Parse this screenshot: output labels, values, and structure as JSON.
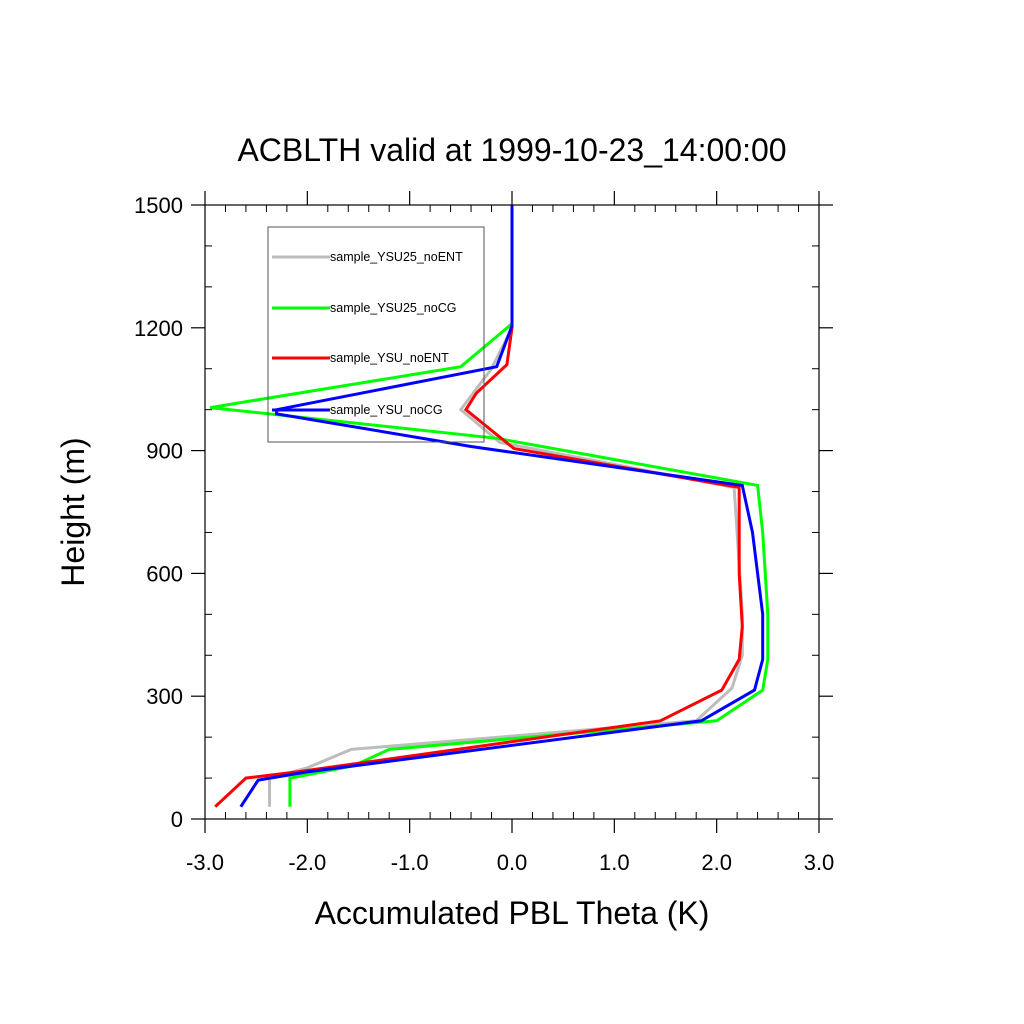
{
  "chart_data": {
    "type": "line",
    "title": "ACBLTH valid at 1999-10-23_14:00:00",
    "xlabel": "Accumulated PBL Theta (K)",
    "ylabel": "Height (m)",
    "xlim": [
      -3.0,
      3.0
    ],
    "ylim": [
      0,
      1500
    ],
    "xticks": [
      -3.0,
      -2.0,
      -1.0,
      0.0,
      1.0,
      2.0,
      3.0
    ],
    "xtick_labels": [
      "-3.0",
      "-2.0",
      "-1.0",
      "0.0",
      "1.0",
      "2.0",
      "3.0"
    ],
    "yticks": [
      0,
      300,
      600,
      900,
      1200,
      1500
    ],
    "ytick_labels": [
      "0",
      "300",
      "600",
      "900",
      "1200",
      "1500"
    ],
    "grid": false,
    "legend_placement": "top-left",
    "series": [
      {
        "name": "sample_YSU25_noENT",
        "color": "#bdbdbd",
        "x": [
          -2.37,
          -2.37,
          -2.0,
          -1.57,
          1.8,
          2.15,
          2.25,
          2.25,
          2.2,
          2.17,
          -0.12,
          -0.5,
          -0.2,
          0.0,
          0.0
        ],
        "y": [
          30,
          100,
          125,
          170,
          240,
          320,
          400,
          500,
          700,
          810,
          920,
          1000,
          1100,
          1200,
          1500
        ]
      },
      {
        "name": "sample_YSU25_noCG",
        "color": "#00ff00",
        "x": [
          -2.17,
          -2.17,
          -1.55,
          -1.2,
          2.0,
          2.45,
          2.5,
          2.5,
          2.45,
          2.4,
          -0.15,
          -2.95,
          -0.5,
          0.0,
          0.0
        ],
        "y": [
          30,
          100,
          130,
          170,
          240,
          315,
          390,
          500,
          700,
          815,
          930,
          1005,
          1105,
          1210,
          1500
        ]
      },
      {
        "name": "sample_YSU_noENT",
        "color": "#ff0000",
        "x": [
          -2.9,
          -2.6,
          -2.1,
          1.45,
          2.05,
          2.22,
          2.25,
          2.22,
          2.22,
          0.02,
          -0.45,
          -0.35,
          -0.05,
          0.0,
          0.0
        ],
        "y": [
          30,
          100,
          115,
          240,
          315,
          390,
          470,
          600,
          810,
          905,
          1000,
          1040,
          1110,
          1200,
          1500
        ]
      },
      {
        "name": "sample_YSU_noCG",
        "color": "#0000ff",
        "x": [
          -2.65,
          -2.48,
          -2.0,
          1.85,
          2.37,
          2.45,
          2.45,
          2.35,
          2.25,
          -0.4,
          -2.3,
          -2.3,
          -0.15,
          0.0,
          0.0
        ],
        "y": [
          30,
          95,
          115,
          240,
          315,
          390,
          500,
          700,
          815,
          910,
          990,
          1000,
          1105,
          1205,
          1500
        ]
      }
    ]
  }
}
